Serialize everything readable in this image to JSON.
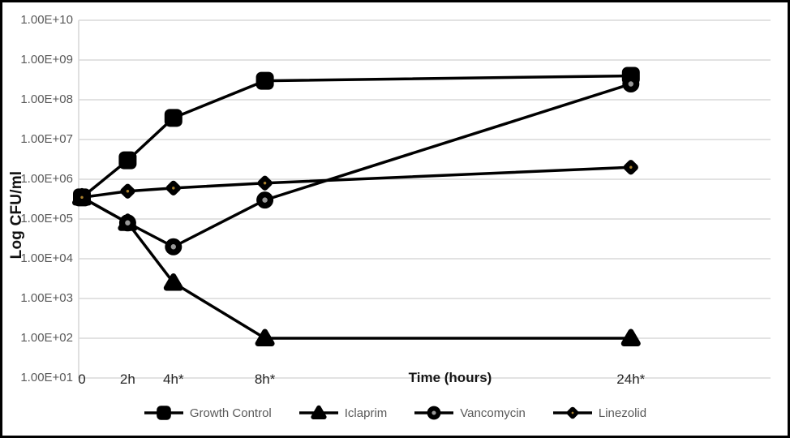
{
  "chart_data": {
    "type": "line",
    "title": "",
    "xlabel": "Time (hours)",
    "ylabel": "Log CFU/ml",
    "x_hours": [
      0,
      2,
      4,
      8,
      24
    ],
    "x_tick_labels": [
      "0",
      "2h",
      "4h*",
      "8h*",
      "24h*"
    ],
    "y_scale": "log10",
    "ylim": [
      10.0,
      10000000000.0
    ],
    "y_tick_labels": [
      "1.00E+10",
      "1.00E+09",
      "1.00E+08",
      "1.00E+07",
      "1.00E+06",
      "1.00E+05",
      "1.00E+04",
      "1.00E+03",
      "1.00E+02",
      "1.00E+01"
    ],
    "grid": "horizontal",
    "legend_position": "bottom",
    "series": [
      {
        "name": "Growth Control",
        "marker": "square",
        "values": [
          350000.0,
          3000000.0,
          35000000.0,
          300000000.0,
          400000000.0
        ]
      },
      {
        "name": "Iclaprim",
        "marker": "triangle",
        "values": [
          350000.0,
          80000.0,
          2500.0,
          100.0,
          100.0
        ]
      },
      {
        "name": "Vancomycin",
        "marker": "circle-dot",
        "values": [
          350000.0,
          80000.0,
          20000.0,
          300000.0,
          250000000.0
        ]
      },
      {
        "name": "Linezolid",
        "marker": "diamond",
        "values": [
          350000.0,
          500000.0,
          600000.0,
          800000.0,
          2000000.0
        ]
      }
    ]
  },
  "colors": {
    "series_line": "#000000",
    "gridline": "#d9d9d9",
    "y_tick_text": "#595959",
    "x_tick_text": "#262626",
    "legend_text": "#595959",
    "circle_center_dot": "#999999",
    "diamond_center_dot": "#a9802d",
    "background": "#ffffff",
    "border": "#000000"
  }
}
